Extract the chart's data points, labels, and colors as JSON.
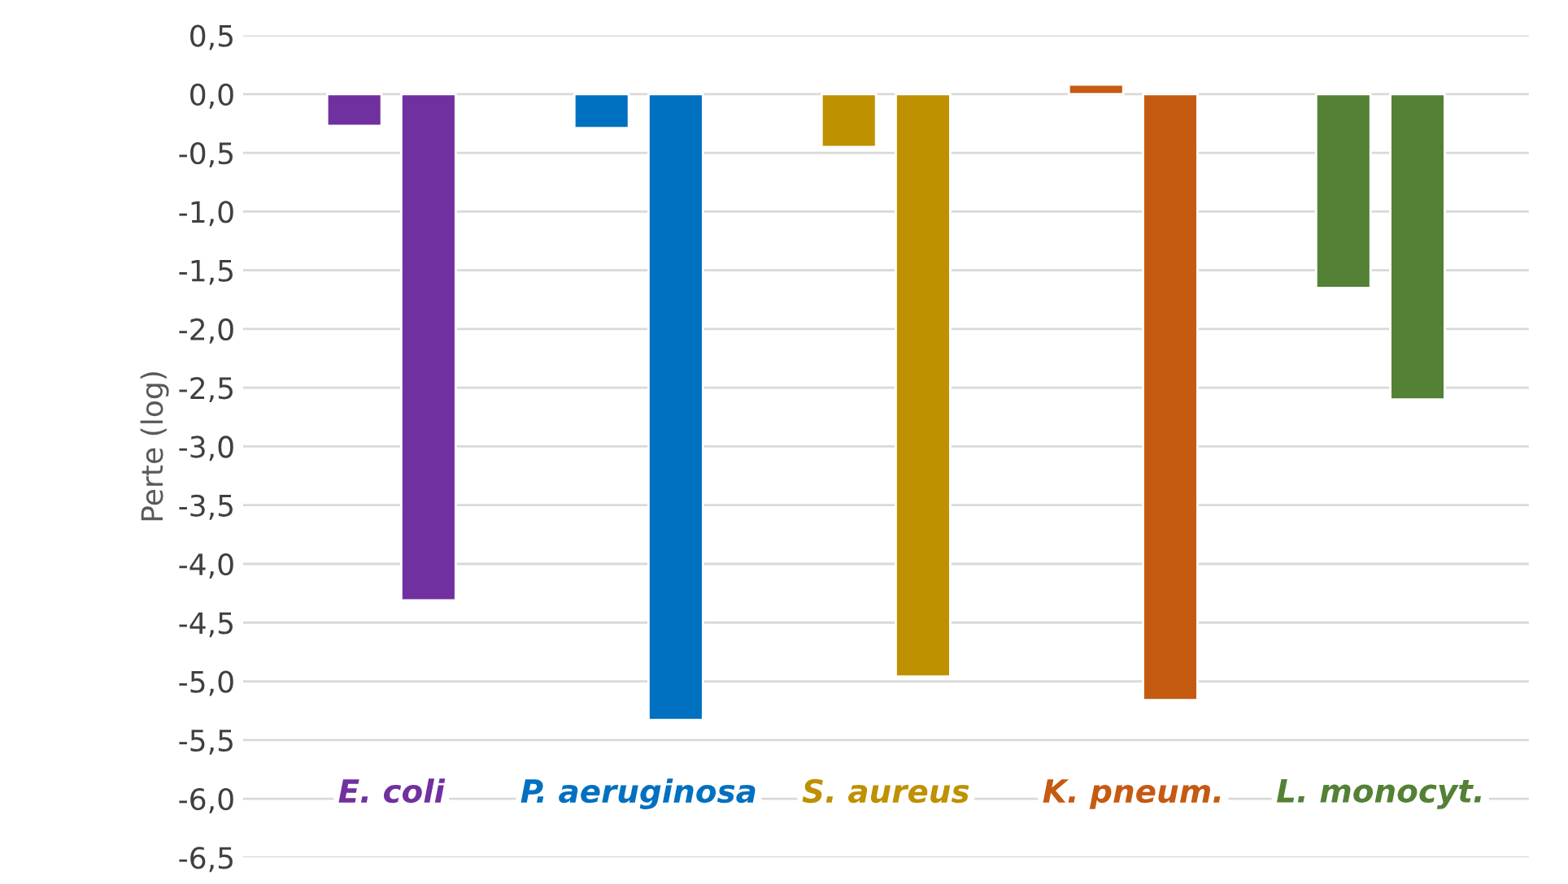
{
  "chart_data": {
    "type": "bar",
    "ylabel": "Perte (log)",
    "categories": [
      "E. coli",
      "P. aeruginosa",
      "S. aureus",
      "K. pneum.",
      "L. monocyt."
    ],
    "series": [
      {
        "colors": [
          "#7030a0",
          "#0070c0",
          "#bf9000",
          "#c55a11",
          "#538135"
        ],
        "values": [
          -0.27,
          -0.29,
          -0.45,
          0.08,
          -1.65
        ]
      },
      {
        "colors": [
          "#7030a0",
          "#0070c0",
          "#bf9000",
          "#c55a11",
          "#538135"
        ],
        "values": [
          -4.31,
          -5.33,
          -4.96,
          -5.16,
          -2.6
        ]
      }
    ],
    "ylim": [
      -6.5,
      0.5
    ],
    "yticks": [
      {
        "value": 0.5,
        "label": "0,5"
      },
      {
        "value": 0,
        "label": "0,0"
      },
      {
        "value": -0.5,
        "label": "-0,5"
      },
      {
        "value": -1,
        "label": "-1,0"
      },
      {
        "value": -1.5,
        "label": "-1,5"
      },
      {
        "value": -2,
        "label": "-2,0"
      },
      {
        "value": -2.5,
        "label": "-2,5"
      },
      {
        "value": -3,
        "label": "-3,0"
      },
      {
        "value": -3.5,
        "label": "-3,5"
      },
      {
        "value": -4,
        "label": "-4,0"
      },
      {
        "value": -4.5,
        "label": "-4,5"
      },
      {
        "value": -5,
        "label": "-5,0"
      },
      {
        "value": -5.5,
        "label": "-5,5"
      },
      {
        "value": -6,
        "label": "-6,0"
      },
      {
        "value": -6.5,
        "label": "-6,5"
      }
    ],
    "grid": "y",
    "legend": false
  }
}
